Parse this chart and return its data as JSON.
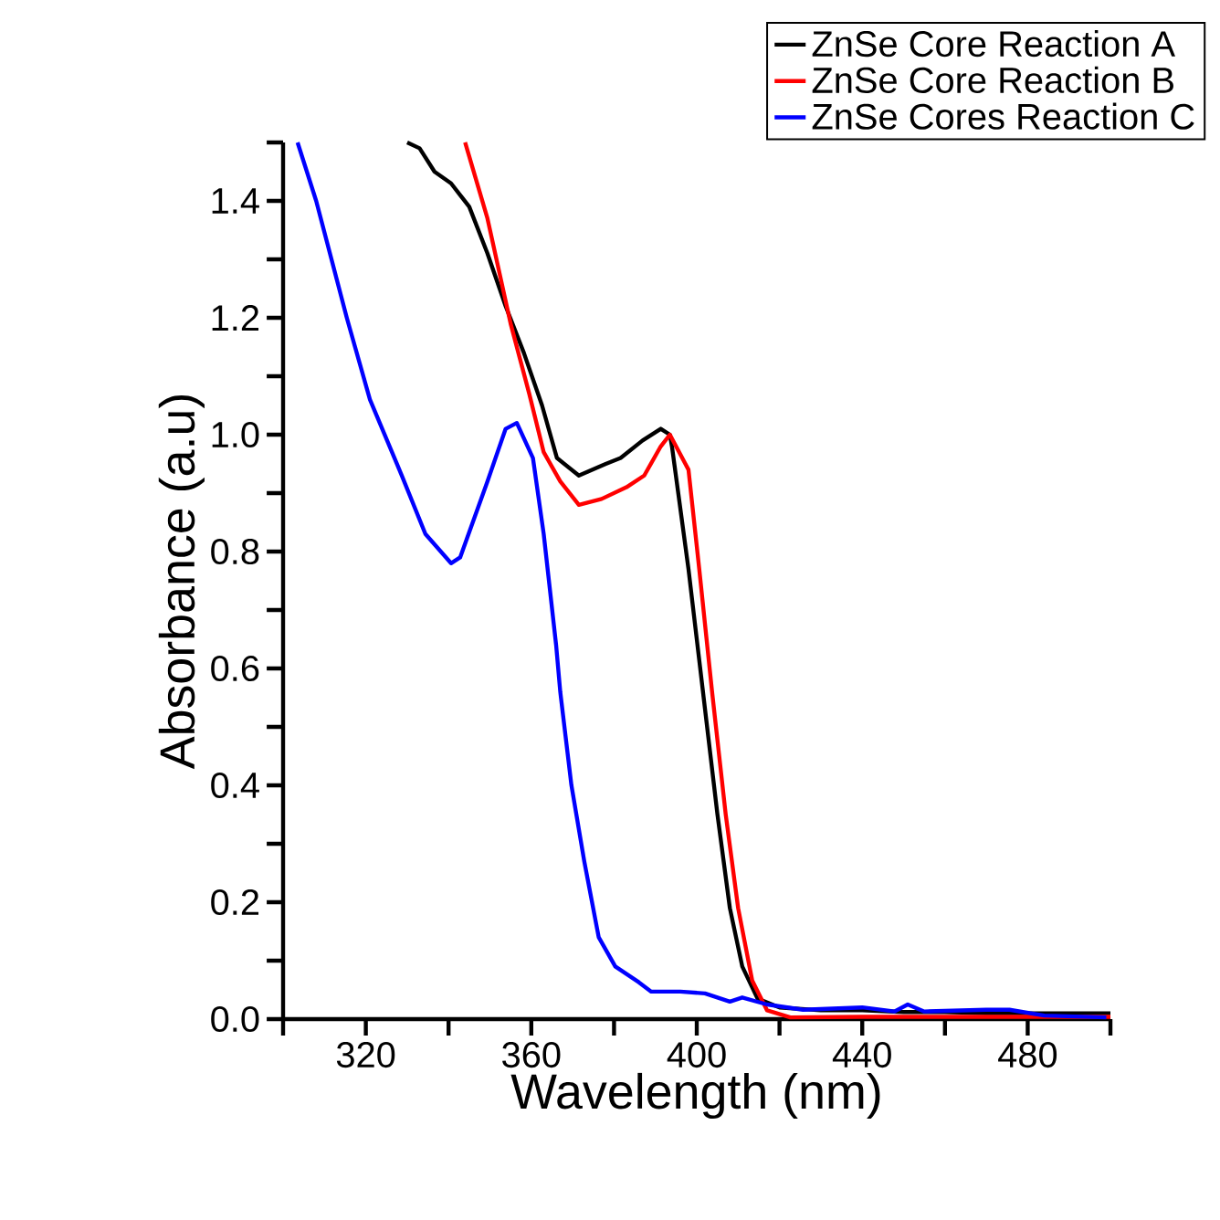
{
  "chart_data": {
    "type": "line",
    "xlabel": "Wavelength (nm)",
    "ylabel": "Absorbance (a.u)",
    "xlim": [
      300,
      500
    ],
    "ylim": [
      0,
      1.5
    ],
    "xticks": [
      {
        "value": 300,
        "label": null
      },
      {
        "value": 320,
        "label": "320"
      },
      {
        "value": 340,
        "label": null
      },
      {
        "value": 360,
        "label": "360"
      },
      {
        "value": 380,
        "label": null
      },
      {
        "value": 400,
        "label": "400"
      },
      {
        "value": 420,
        "label": null
      },
      {
        "value": 440,
        "label": "440"
      },
      {
        "value": 460,
        "label": null
      },
      {
        "value": 480,
        "label": "480"
      },
      {
        "value": 500,
        "label": null
      }
    ],
    "yticks": [
      {
        "value": 0,
        "label": "0.0"
      },
      {
        "value": 0.1,
        "label": null
      },
      {
        "value": 0.2,
        "label": "0.2"
      },
      {
        "value": 0.3,
        "label": null
      },
      {
        "value": 0.4,
        "label": "0.4"
      },
      {
        "value": 0.5,
        "label": null
      },
      {
        "value": 0.6,
        "label": "0.6"
      },
      {
        "value": 0.7,
        "label": null
      },
      {
        "value": 0.8,
        "label": "0.8"
      },
      {
        "value": 0.9,
        "label": null
      },
      {
        "value": 1.0,
        "label": "1.0"
      },
      {
        "value": 1.1,
        "label": null
      },
      {
        "value": 1.2,
        "label": "1.2"
      },
      {
        "value": 1.3,
        "label": null
      },
      {
        "value": 1.4,
        "label": "1.4"
      },
      {
        "value": 1.5,
        "label": null
      }
    ],
    "grid": false,
    "legend": "top right",
    "marker": "none",
    "line_style": "solid",
    "series": [
      {
        "name": "ZnSe Core Reaction A",
        "color": "#000000",
        "x": [
          330,
          333,
          336.6,
          340.6,
          342.8,
          345,
          349.4,
          353.8,
          358.2,
          362.6,
          366.2,
          371.5,
          378,
          381.6,
          386.9,
          391.3,
          393.5,
          394,
          398,
          401.5,
          405,
          408,
          411,
          414.7,
          420,
          430,
          440,
          450,
          460,
          470,
          480,
          490,
          500
        ],
        "values": [
          1.5,
          1.49,
          1.45,
          1.43,
          1.41,
          1.39,
          1.31,
          1.22,
          1.14,
          1.05,
          0.96,
          0.93,
          0.95,
          0.96,
          0.99,
          1.01,
          1.0,
          0.98,
          0.77,
          0.56,
          0.35,
          0.19,
          0.09,
          0.035,
          0.02,
          0.015,
          0.015,
          0.012,
          0.012,
          0.01,
          0.01,
          0.01,
          0.01
        ]
      },
      {
        "name": "ZnSe Core Reaction B",
        "color": "#ff0000",
        "x": [
          344,
          349.4,
          355,
          359.5,
          363,
          367,
          371.5,
          377,
          383,
          387.3,
          391.3,
          393.5,
          398,
          400.6,
          403.7,
          407,
          410,
          413.4,
          417,
          422.6,
          440,
          460,
          480,
          500
        ],
        "values": [
          1.5,
          1.37,
          1.19,
          1.07,
          0.97,
          0.92,
          0.88,
          0.89,
          0.91,
          0.93,
          0.98,
          1.0,
          0.94,
          0.77,
          0.56,
          0.35,
          0.19,
          0.066,
          0.015,
          0.003,
          0.004,
          0.004,
          0.004,
          0.004
        ]
      },
      {
        "name": "ZnSe Cores Reaction C",
        "color": "#0000ff",
        "x": [
          303.5,
          308,
          315.4,
          321,
          328.7,
          334.4,
          340.6,
          342.8,
          349.4,
          353.8,
          356.5,
          360.4,
          363,
          366,
          367,
          369.7,
          372.8,
          376.3,
          380.3,
          386,
          389,
          396,
          402,
          408,
          411,
          417,
          425.7,
          440,
          447.8,
          451,
          455,
          470,
          475.6,
          484,
          499
        ],
        "values": [
          1.5,
          1.4,
          1.2,
          1.06,
          0.93,
          0.83,
          0.78,
          0.79,
          0.92,
          1.01,
          1.02,
          0.96,
          0.83,
          0.64,
          0.56,
          0.4,
          0.27,
          0.14,
          0.09,
          0.063,
          0.047,
          0.047,
          0.044,
          0.03,
          0.037,
          0.025,
          0.016,
          0.02,
          0.013,
          0.025,
          0.013,
          0.016,
          0.016,
          0.006,
          0.003
        ]
      }
    ]
  }
}
